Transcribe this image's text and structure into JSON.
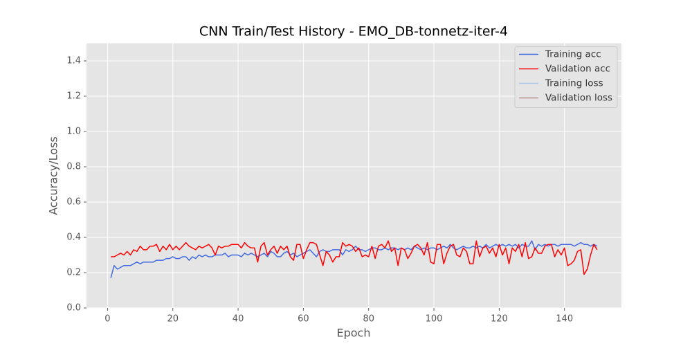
{
  "chart_data": {
    "type": "line",
    "title": "CNN Train/Test History -  EMO_DB-tonnetz-iter-4",
    "x_label": "Epoch",
    "y_label": "Accuracy/Loss",
    "x": [
      1,
      2,
      3,
      4,
      5,
      6,
      7,
      8,
      9,
      10,
      11,
      12,
      13,
      14,
      15,
      16,
      17,
      18,
      19,
      20,
      21,
      22,
      23,
      24,
      25,
      26,
      27,
      28,
      29,
      30,
      31,
      32,
      33,
      34,
      35,
      36,
      37,
      38,
      39,
      40,
      41,
      42,
      43,
      44,
      45,
      46,
      47,
      48,
      49,
      50,
      51,
      52,
      53,
      54,
      55,
      56,
      57,
      58,
      59,
      60,
      61,
      62,
      63,
      64,
      65,
      66,
      67,
      68,
      69,
      70,
      71,
      72,
      73,
      74,
      75,
      76,
      77,
      78,
      79,
      80,
      81,
      82,
      83,
      84,
      85,
      86,
      87,
      88,
      89,
      90,
      91,
      92,
      93,
      94,
      95,
      96,
      97,
      98,
      99,
      100,
      101,
      102,
      103,
      104,
      105,
      106,
      107,
      108,
      109,
      110,
      111,
      112,
      113,
      114,
      115,
      116,
      117,
      118,
      119,
      120,
      121,
      122,
      123,
      124,
      125,
      126,
      127,
      128,
      129,
      130,
      131,
      132,
      133,
      134,
      135,
      136,
      137,
      138,
      139,
      140,
      141,
      142,
      143,
      144,
      145,
      146,
      147,
      148,
      149,
      150
    ],
    "series": [
      {
        "name": "Training acc",
        "color": "#4169e1",
        "values": [
          0.17,
          0.24,
          0.22,
          0.23,
          0.24,
          0.24,
          0.24,
          0.25,
          0.26,
          0.25,
          0.26,
          0.26,
          0.26,
          0.26,
          0.27,
          0.27,
          0.27,
          0.28,
          0.28,
          0.29,
          0.28,
          0.28,
          0.29,
          0.29,
          0.27,
          0.29,
          0.28,
          0.3,
          0.29,
          0.3,
          0.29,
          0.29,
          0.3,
          0.3,
          0.3,
          0.31,
          0.29,
          0.3,
          0.3,
          0.3,
          0.29,
          0.31,
          0.3,
          0.31,
          0.3,
          0.29,
          0.3,
          0.31,
          0.29,
          0.32,
          0.31,
          0.29,
          0.29,
          0.31,
          0.32,
          0.3,
          0.31,
          0.29,
          0.3,
          0.31,
          0.32,
          0.33,
          0.31,
          0.29,
          0.32,
          0.33,
          0.32,
          0.32,
          0.33,
          0.33,
          0.33,
          0.3,
          0.33,
          0.32,
          0.33,
          0.35,
          0.33,
          0.33,
          0.32,
          0.33,
          0.34,
          0.34,
          0.33,
          0.33,
          0.34,
          0.33,
          0.34,
          0.34,
          0.33,
          0.34,
          0.33,
          0.34,
          0.33,
          0.35,
          0.34,
          0.33,
          0.34,
          0.33,
          0.34,
          0.34,
          0.33,
          0.34,
          0.35,
          0.34,
          0.36,
          0.34,
          0.33,
          0.34,
          0.35,
          0.34,
          0.34,
          0.35,
          0.34,
          0.35,
          0.34,
          0.36,
          0.34,
          0.35,
          0.36,
          0.35,
          0.36,
          0.35,
          0.36,
          0.35,
          0.36,
          0.34,
          0.36,
          0.35,
          0.35,
          0.38,
          0.33,
          0.36,
          0.35,
          0.36,
          0.35,
          0.36,
          0.36,
          0.35,
          0.36,
          0.36,
          0.36,
          0.36,
          0.35,
          0.36,
          0.37,
          0.36,
          0.36,
          0.35,
          0.36,
          0.35
        ]
      },
      {
        "name": "Validation acc",
        "color": "#ff0000",
        "values": [
          0.29,
          0.29,
          0.3,
          0.31,
          0.3,
          0.32,
          0.3,
          0.33,
          0.32,
          0.35,
          0.33,
          0.33,
          0.35,
          0.35,
          0.36,
          0.32,
          0.35,
          0.33,
          0.36,
          0.33,
          0.35,
          0.33,
          0.35,
          0.37,
          0.35,
          0.34,
          0.33,
          0.35,
          0.34,
          0.35,
          0.36,
          0.34,
          0.3,
          0.35,
          0.34,
          0.35,
          0.35,
          0.36,
          0.36,
          0.36,
          0.34,
          0.37,
          0.35,
          0.34,
          0.34,
          0.26,
          0.35,
          0.37,
          0.3,
          0.33,
          0.35,
          0.31,
          0.35,
          0.33,
          0.35,
          0.29,
          0.27,
          0.36,
          0.36,
          0.28,
          0.33,
          0.37,
          0.37,
          0.36,
          0.3,
          0.24,
          0.32,
          0.3,
          0.26,
          0.29,
          0.29,
          0.37,
          0.35,
          0.36,
          0.35,
          0.32,
          0.34,
          0.29,
          0.3,
          0.29,
          0.35,
          0.28,
          0.35,
          0.36,
          0.34,
          0.38,
          0.32,
          0.34,
          0.24,
          0.34,
          0.33,
          0.28,
          0.31,
          0.35,
          0.36,
          0.34,
          0.3,
          0.37,
          0.26,
          0.25,
          0.36,
          0.36,
          0.25,
          0.31,
          0.35,
          0.36,
          0.3,
          0.29,
          0.34,
          0.32,
          0.25,
          0.25,
          0.38,
          0.29,
          0.34,
          0.35,
          0.31,
          0.34,
          0.29,
          0.36,
          0.3,
          0.34,
          0.25,
          0.34,
          0.32,
          0.36,
          0.29,
          0.37,
          0.28,
          0.29,
          0.34,
          0.31,
          0.31,
          0.35,
          0.36,
          0.36,
          0.29,
          0.33,
          0.3,
          0.34,
          0.24,
          0.25,
          0.27,
          0.32,
          0.33,
          0.19,
          0.22,
          0.3,
          0.36,
          0.33
        ]
      },
      {
        "name": "Training loss",
        "color": "#aec7e8",
        "values": [
          null,
          null,
          null,
          null,
          null,
          null,
          null,
          null,
          null,
          null,
          null,
          null,
          null,
          null,
          null,
          null,
          null,
          null,
          null,
          null,
          null,
          null,
          null,
          null,
          null,
          null,
          null,
          null,
          null,
          null,
          null,
          null,
          null,
          null,
          null,
          null,
          null,
          null,
          null,
          null,
          null,
          null,
          null,
          null,
          null,
          null,
          null,
          null,
          null,
          null,
          null,
          null,
          null,
          null,
          null,
          null,
          null,
          null,
          null,
          null,
          null,
          null,
          null,
          null,
          null,
          null,
          null,
          null,
          null,
          null,
          null,
          null,
          null,
          null,
          null,
          null,
          null,
          null,
          null,
          null,
          null,
          null,
          null,
          null,
          null,
          null,
          null,
          null,
          null,
          null,
          null,
          null,
          null,
          null,
          null,
          null,
          null,
          null,
          null,
          null,
          null,
          null,
          null,
          null,
          null,
          null,
          null,
          null,
          null,
          null,
          null,
          null,
          null,
          null,
          null,
          null,
          null,
          null,
          null,
          null,
          null,
          null,
          null,
          null,
          null,
          null,
          null,
          null,
          null,
          null,
          null,
          null,
          null,
          null,
          null,
          null,
          null,
          null,
          null,
          null,
          null,
          null,
          null,
          null,
          null,
          null,
          null,
          null,
          null,
          null
        ]
      },
      {
        "name": "Validation loss",
        "color": "#bc8f8f",
        "values": [
          null,
          null,
          null,
          null,
          null,
          null,
          null,
          null,
          null,
          null,
          null,
          null,
          null,
          null,
          null,
          null,
          null,
          null,
          null,
          null,
          null,
          null,
          null,
          null,
          null,
          null,
          null,
          null,
          null,
          null,
          null,
          null,
          null,
          null,
          null,
          null,
          null,
          null,
          null,
          null,
          null,
          null,
          null,
          null,
          null,
          null,
          null,
          null,
          null,
          null,
          null,
          null,
          null,
          null,
          null,
          null,
          null,
          null,
          null,
          null,
          null,
          null,
          null,
          null,
          null,
          null,
          null,
          null,
          null,
          null,
          null,
          null,
          null,
          null,
          null,
          null,
          null,
          null,
          null,
          null,
          null,
          null,
          null,
          null,
          null,
          null,
          null,
          null,
          null,
          null,
          null,
          null,
          null,
          null,
          null,
          null,
          null,
          null,
          null,
          null,
          null,
          null,
          null,
          null,
          null,
          null,
          null,
          null,
          null,
          null,
          null,
          null,
          null,
          null,
          null,
          null,
          null,
          null,
          null,
          null,
          null,
          null,
          null,
          null,
          null,
          null,
          null,
          null,
          null,
          null,
          null,
          null,
          null,
          null,
          null,
          null,
          null,
          null,
          null,
          null,
          null,
          null,
          null,
          null,
          null,
          null,
          null,
          null,
          null,
          null
        ]
      }
    ],
    "xlim": [
      -6.45,
      157.45
    ],
    "ylim": [
      0,
      1.5
    ],
    "xticks": [
      0,
      20,
      40,
      60,
      80,
      100,
      120,
      140
    ],
    "yticks": [
      {
        "value": 0,
        "label": "0.0"
      },
      0.2,
      0.4,
      0.6,
      0.8,
      {
        "value": 1,
        "label": "1.0"
      },
      1.2,
      1.4
    ],
    "grid": true,
    "legend": "upper right"
  }
}
